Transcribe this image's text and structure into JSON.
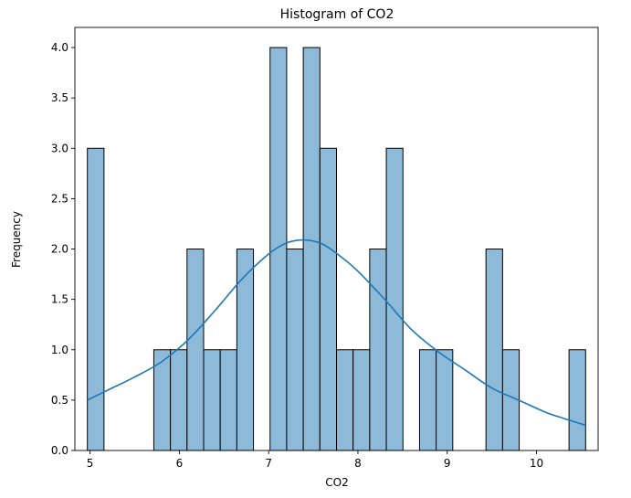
{
  "chart_data": {
    "type": "bar",
    "title": "Histogram of CO2",
    "xlabel": "CO2",
    "ylabel": "Frequency",
    "xlim": [
      4.83,
      10.69
    ],
    "ylim": [
      0,
      4.2
    ],
    "xticks": [
      "5",
      "6",
      "7",
      "8",
      "9",
      "10"
    ],
    "yticks": [
      "0.0",
      "0.5",
      "1.0",
      "1.5",
      "2.0",
      "2.5",
      "3.0",
      "3.5",
      "4.0"
    ],
    "bin_start": 4.97,
    "bin_width": 0.186,
    "counts": [
      3,
      0,
      0,
      0,
      1,
      1,
      2,
      1,
      1,
      2,
      0,
      4,
      2,
      4,
      3,
      1,
      1,
      2,
      3,
      0,
      1,
      1,
      0,
      0,
      2,
      1,
      0,
      0,
      0,
      1
    ],
    "kde": {
      "x": [
        4.97,
        5.2,
        5.5,
        5.8,
        6.1,
        6.4,
        6.7,
        7.0,
        7.2,
        7.4,
        7.6,
        7.8,
        8.0,
        8.3,
        8.6,
        8.9,
        9.2,
        9.5,
        9.8,
        10.1,
        10.3,
        10.55
      ],
      "y": [
        0.5,
        0.6,
        0.73,
        0.88,
        1.1,
        1.39,
        1.7,
        1.95,
        2.06,
        2.09,
        2.05,
        1.93,
        1.78,
        1.5,
        1.2,
        0.98,
        0.8,
        0.62,
        0.5,
        0.38,
        0.32,
        0.25
      ]
    },
    "bar_color": "#8ebad9",
    "bar_edge": "#000000",
    "line_color": "#1f77b4",
    "grid": false
  }
}
